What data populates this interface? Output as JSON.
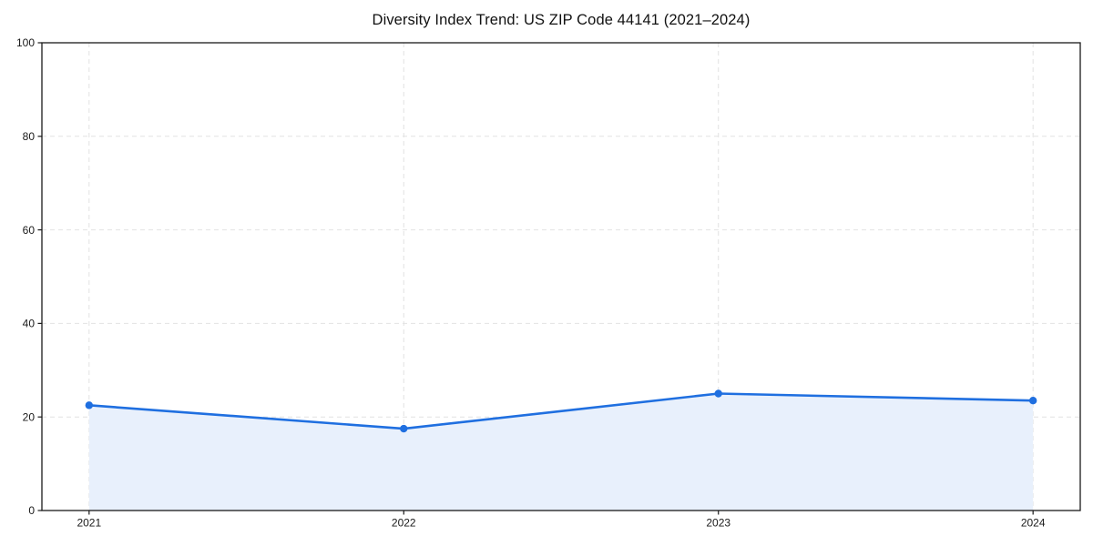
{
  "chart_data": {
    "type": "area",
    "title": "Diversity Index Trend: US ZIP Code 44141 (2021–2024)",
    "categories": [
      "2021",
      "2022",
      "2023",
      "2024"
    ],
    "series": [
      {
        "name": "Diversity Index",
        "values": [
          22.5,
          17.5,
          25.0,
          23.5
        ]
      }
    ],
    "xlabel": "",
    "ylabel": "",
    "ylim": [
      0,
      100
    ],
    "yticks": [
      0,
      20,
      40,
      60,
      80,
      100
    ],
    "grid": true,
    "grid_style": "dashed",
    "legend_position": "none",
    "marker": "circle",
    "colors": {
      "line": "#1f6fe0",
      "marker": "#1f6fe0",
      "fill": "#e8f0fc",
      "grid": "#e2e2e2",
      "axis": "#1a1a1a",
      "text": "#1a1a1a",
      "background": "#ffffff"
    }
  }
}
